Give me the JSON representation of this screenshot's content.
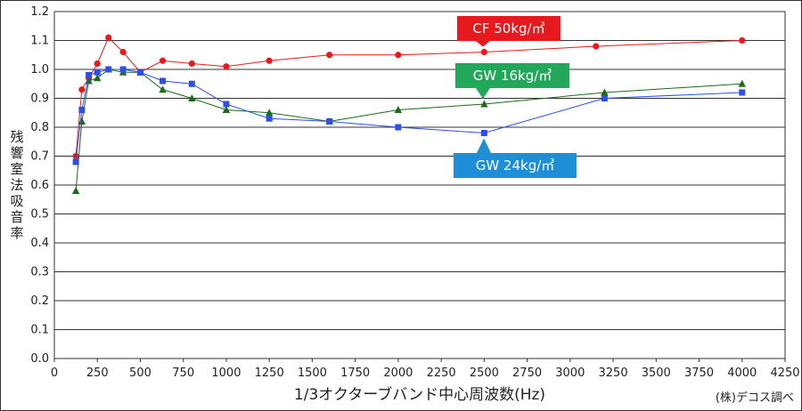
{
  "chart_data": {
    "type": "line",
    "xlabel": "1/3オクターブバンド中心周波数(Hz)",
    "ylabel": "残響室法吸音率",
    "xlim": [
      0,
      4250
    ],
    "ylim": [
      0,
      1.2
    ],
    "x_ticks": [
      "0",
      "250",
      "500",
      "750",
      "1000",
      "1250",
      "1500",
      "1750",
      "2000",
      "2250",
      "2500",
      "2750",
      "3000",
      "3250",
      "3500",
      "3750",
      "4000",
      "4250"
    ],
    "y_ticks": [
      "0.0",
      "0.1",
      "0.2",
      "0.3",
      "0.4",
      "0.5",
      "0.6",
      "0.7",
      "0.8",
      "0.9",
      "1.0",
      "1.1",
      "1.2"
    ],
    "grid": true,
    "series": [
      {
        "name": "CF 50kg/㎥",
        "color": "#e8191c",
        "marker": "circle",
        "points": [
          [
            125,
            0.7
          ],
          [
            160,
            0.93
          ],
          [
            200,
            0.97
          ],
          [
            250,
            1.02
          ],
          [
            315,
            1.11
          ],
          [
            400,
            1.06
          ],
          [
            500,
            0.99
          ],
          [
            630,
            1.03
          ],
          [
            800,
            1.02
          ],
          [
            1000,
            1.01
          ],
          [
            1250,
            1.03
          ],
          [
            1600,
            1.05
          ],
          [
            2000,
            1.05
          ],
          [
            2500,
            1.06
          ],
          [
            3150,
            1.08
          ],
          [
            4000,
            1.1
          ]
        ]
      },
      {
        "name": "GW 16kg/㎥",
        "color": "#1a6b1a",
        "marker": "triangle",
        "points": [
          [
            125,
            0.58
          ],
          [
            160,
            0.82
          ],
          [
            200,
            0.96
          ],
          [
            250,
            0.97
          ],
          [
            315,
            1.0
          ],
          [
            400,
            0.99
          ],
          [
            500,
            0.99
          ],
          [
            630,
            0.93
          ],
          [
            800,
            0.9
          ],
          [
            1000,
            0.86
          ],
          [
            1250,
            0.85
          ],
          [
            1600,
            0.82
          ],
          [
            2000,
            0.86
          ],
          [
            2500,
            0.88
          ],
          [
            3200,
            0.92
          ],
          [
            4000,
            0.95
          ]
        ]
      },
      {
        "name": "GW 24kg/㎥",
        "color": "#2b4fe8",
        "marker": "square",
        "points": [
          [
            125,
            0.68
          ],
          [
            160,
            0.86
          ],
          [
            200,
            0.98
          ],
          [
            250,
            0.99
          ],
          [
            315,
            1.0
          ],
          [
            400,
            1.0
          ],
          [
            500,
            0.99
          ],
          [
            630,
            0.96
          ],
          [
            800,
            0.95
          ],
          [
            1000,
            0.88
          ],
          [
            1250,
            0.83
          ],
          [
            1600,
            0.82
          ],
          [
            2000,
            0.8
          ],
          [
            2500,
            0.78
          ],
          [
            3200,
            0.9
          ],
          [
            4000,
            0.92
          ]
        ]
      }
    ],
    "callouts": [
      {
        "text": "CF 50kg/㎥",
        "series": 0,
        "color": "#e8191c"
      },
      {
        "text": "GW 16kg/㎥",
        "series": 1,
        "color": "#21a85a"
      },
      {
        "text": "GW 24kg/㎥",
        "series": 2,
        "color": "#1e8fd6"
      }
    ]
  },
  "credit": "(株)デコス調べ"
}
